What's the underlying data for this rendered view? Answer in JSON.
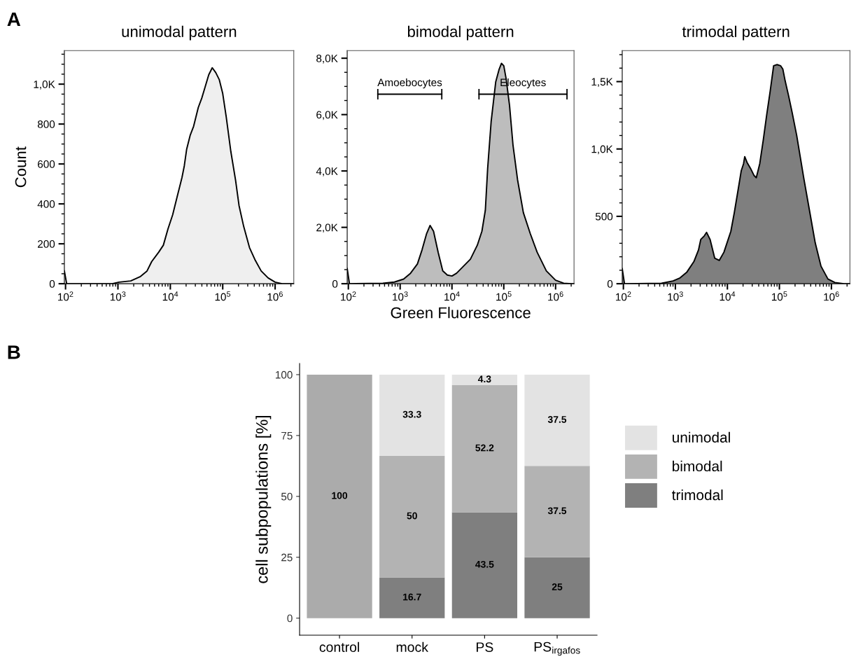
{
  "chart_data": [
    {
      "type": "area",
      "title": "unimodal pattern",
      "ylabel": "Count",
      "annotations": [
        "A"
      ],
      "log": "x",
      "xlim": [
        95,
        2270000
      ],
      "xticks": [
        {
          "value": 100,
          "label": "10$^{2}$"
        },
        {
          "value": 1000,
          "label": "10$^{3}$"
        },
        {
          "value": 10000,
          "label": "10$^{4}$"
        },
        {
          "value": 100000,
          "label": "10$^{5}$"
        },
        {
          "value": 1000000,
          "label": "10$^{6}$"
        }
      ],
      "ylim": [
        0,
        1168
      ],
      "yticks": [
        0,
        200,
        400,
        600,
        800,
        {
          "value": 1000,
          "label": "1,0K"
        }
      ],
      "series": [
        {
          "color": "#efefef",
          "x": [
            95,
            105,
            774,
            1052,
            1755,
            2643,
            3594,
            4410,
            5995,
            7360,
            9030,
            11080,
            13590,
            16680,
            18480,
            20470,
            23870,
            27830,
            34150,
            39810,
            46420,
            54120,
            63100,
            73560,
            85770,
            100000,
            116600,
            143100,
            175500,
            204700,
            251200,
            324300,
            418600,
            541200,
            735600,
            1000000,
            1359000,
            2268000
          ],
          "values": [
            64,
            0,
            0,
            8,
            14,
            35,
            64,
            111,
            158,
            193,
            275,
            345,
            439,
            532,
            591,
            673,
            743,
            789,
            883,
            930,
            988,
            1047,
            1082,
            1058,
            1023,
            953,
            836,
            661,
            520,
            392,
            287,
            181,
            117,
            64,
            29,
            8,
            0,
            0
          ]
        }
      ]
    },
    {
      "type": "area",
      "title": "bimodal pattern",
      "xlabel": "Green Fluorescence",
      "log": "x",
      "xlim": [
        95,
        2270000
      ],
      "xticks": [
        {
          "value": 100,
          "label": "10$^{2}$"
        },
        {
          "value": 1000,
          "label": "10$^{3}$"
        },
        {
          "value": 10000,
          "label": "10$^{4}$"
        },
        {
          "value": 100000,
          "label": "10$^{5}$"
        },
        {
          "value": 1000000,
          "label": "10$^{6}$"
        }
      ],
      "ylim": [
        0,
        8270
      ],
      "yticks": [
        0,
        {
          "value": 2000,
          "label": "2,0K"
        },
        {
          "value": 4000,
          "label": "4,0K"
        },
        {
          "value": 6000,
          "label": "6,0K"
        },
        {
          "value": 8000,
          "label": "8,0K"
        }
      ],
      "annotations": [
        "Amoebocytes",
        "Eleocytes"
      ],
      "series": [
        {
          "color": "#bdbdbd",
          "x": [
            95,
            105,
            464,
            774,
            1166,
            1585,
            2154,
            2643,
            3243,
            3784,
            4410,
            5412,
            6637,
            8146,
            10000,
            12270,
            16680,
            22680,
            30830,
            37840,
            44060,
            48860,
            57020,
            69870,
            81460,
            90280,
            100000,
            110800,
            129100,
            150600,
            184800,
            238800,
            324300,
            440600,
            663700,
            1000000,
            1431000,
            2048000,
            2268000
          ],
          "values": [
            538,
            0,
            17,
            58,
            165,
            372,
            703,
            1200,
            1779,
            2068,
            1861,
            1117,
            455,
            306,
            273,
            372,
            620,
            869,
            1365,
            1861,
            2606,
            4095,
            5750,
            7156,
            7611,
            7818,
            7735,
            7280,
            6329,
            4922,
            3681,
            2523,
            1779,
            1117,
            455,
            124,
            17,
            0,
            0
          ]
        }
      ]
    },
    {
      "type": "area",
      "title": "trimodal pattern",
      "log": "x",
      "xlim": [
        95,
        2270000
      ],
      "xticks": [
        {
          "value": 100,
          "label": "10$^{2}$"
        },
        {
          "value": 1000,
          "label": "10$^{3}$"
        },
        {
          "value": 10000,
          "label": "10$^{4}$"
        },
        {
          "value": 100000,
          "label": "10$^{5}$"
        },
        {
          "value": 1000000,
          "label": "10$^{6}$"
        }
      ],
      "ylim": [
        0,
        1730
      ],
      "yticks": [
        0,
        500,
        {
          "value": 1000,
          "label": "1,0K"
        },
        {
          "value": 1500,
          "label": "1,5K"
        }
      ],
      "series": [
        {
          "color": "#7f7f7f",
          "x": [
            95,
            105,
            541,
            903,
            1227,
            1668,
            2268,
            2783,
            3081,
            3594,
            3981,
            4642,
            5698,
            6988,
            8577,
            11660,
            13590,
            15850,
            18480,
            20470,
            21540,
            23870,
            27830,
            32430,
            35940,
            41910,
            48860,
            57020,
            66370,
            77430,
            90280,
            105200,
            116600,
            129100,
            150600,
            175500,
            215400,
            251200,
            293100,
            378400,
            488600,
            631000,
            857000,
            1166000,
            1753000,
            2268000
          ],
          "values": [
            112,
            0,
            3,
            21,
            43,
            87,
            164,
            251,
            329,
            355,
            381,
            329,
            190,
            173,
            234,
            389,
            528,
            683,
            839,
            891,
            943,
            900,
            856,
            804,
            787,
            891,
            1064,
            1254,
            1427,
            1618,
            1626,
            1618,
            1592,
            1505,
            1393,
            1272,
            1099,
            943,
            787,
            545,
            303,
            130,
            35,
            9,
            0,
            0
          ]
        }
      ]
    },
    {
      "type": "bar",
      "stacked": true,
      "ylabel": "cell subpopulations [%]",
      "annotations": [
        "B"
      ],
      "categories": [
        "control",
        "mock",
        "PS",
        "PS$_{irgafos}$"
      ],
      "ylim": [
        -7,
        104.6
      ],
      "yticks": [
        0,
        25,
        50,
        75,
        100
      ],
      "data_labels": true,
      "legend": "right",
      "series": [
        {
          "name": "trimodal",
          "color": "#7f7f7f",
          "values": [
            null,
            16.7,
            43.5,
            25
          ]
        },
        {
          "name": "bimodal",
          "color": "#b3b3b3",
          "colors": [
            "#ababab",
            "#b3b3b3",
            "#b3b3b3",
            "#b3b3b3"
          ],
          "values": [
            100,
            50,
            52.2,
            37.5
          ]
        },
        {
          "name": "unimodal",
          "color": "#e3e3e3",
          "values": [
            null,
            33.3,
            4.3,
            37.5
          ]
        }
      ]
    }
  ]
}
